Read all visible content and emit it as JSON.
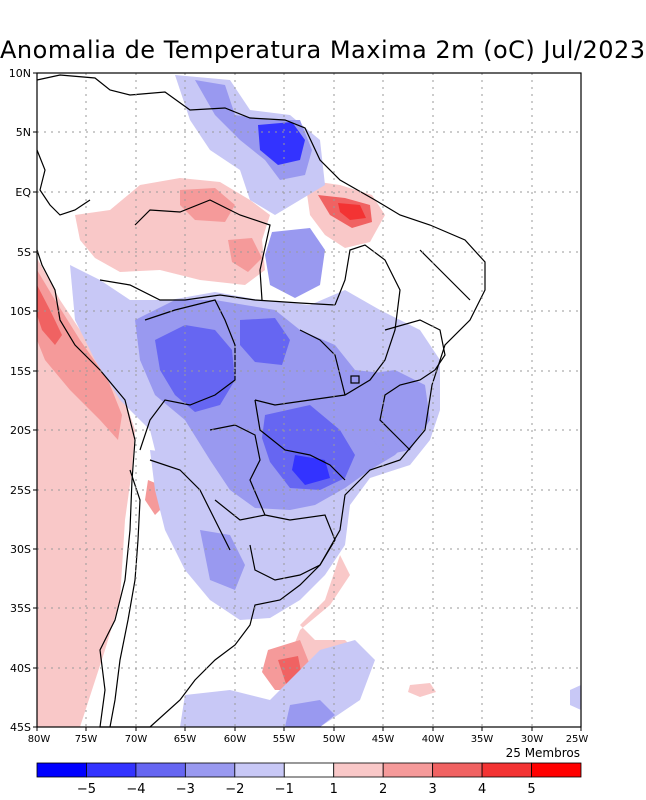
{
  "title": "Anomalia de Temperatura Maxima 2m (oC) Jul/2023",
  "members_note": "25 Membros",
  "latitude_labels": [
    "10N",
    "5N",
    "EQ",
    "5S",
    "10S",
    "15S",
    "20S",
    "25S",
    "30S",
    "35S",
    "40S",
    "45S"
  ],
  "longitude_labels": [
    "80W",
    "75W",
    "70W",
    "65W",
    "60W",
    "55W",
    "50W",
    "45W",
    "40W",
    "35W",
    "30W",
    "25W"
  ],
  "colorbar": {
    "colors": [
      "#0000ff",
      "#3333ff",
      "#6666f2",
      "#9999f0",
      "#c8c8f6",
      "#ffffff",
      "#f9c8c8",
      "#f59a9a",
      "#f06262",
      "#f33333",
      "#ff0000"
    ],
    "labels": [
      "-5",
      "-4",
      "-3",
      "-2",
      "-1",
      "1",
      "2",
      "3",
      "4",
      "5"
    ]
  }
}
